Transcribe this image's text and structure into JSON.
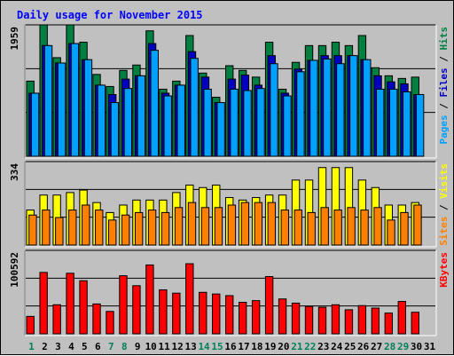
{
  "title": "Daily usage for November 2015",
  "chart_data": {
    "type": "bar",
    "title": "Daily usage for November 2015",
    "categories": [
      "1",
      "2",
      "3",
      "4",
      "5",
      "6",
      "7",
      "8",
      "9",
      "10",
      "11",
      "12",
      "13",
      "14",
      "15",
      "16",
      "17",
      "18",
      "19",
      "20",
      "21",
      "22",
      "23",
      "24",
      "25",
      "26",
      "27",
      "28",
      "29",
      "30",
      "31"
    ],
    "weekend_days": [
      "1",
      "7",
      "8",
      "14",
      "15",
      "21",
      "22",
      "28",
      "29"
    ],
    "panels": [
      {
        "id": "top",
        "ymax_label": "1959",
        "ymax": 1959,
        "legend": [
          {
            "label": "Pages",
            "color": "#00a0ff"
          },
          {
            "label": "Files",
            "color": "#0000c0"
          },
          {
            "label": "Hits",
            "color": "#008040"
          }
        ],
        "series": [
          {
            "name": "Hits",
            "color": "#008040",
            "values": [
              1120,
              1959,
              1470,
              1959,
              1700,
              1220,
              1040,
              1280,
              1360,
              1870,
              1000,
              1120,
              1800,
              1240,
              880,
              1350,
              1280,
              1180,
              1700,
              1000,
              1400,
              1650,
              1650,
              1700,
              1650,
              1800,
              1320,
              1200,
              1160,
              1180,
              0
            ]
          },
          {
            "name": "Files",
            "color": "#0000c0",
            "values": [
              940,
              1650,
              1390,
              1680,
              1440,
              1060,
              920,
              1150,
              1200,
              1680,
              940,
              1060,
              1560,
              1180,
              800,
              1150,
              1210,
              1060,
              1500,
              940,
              1300,
              1430,
              1500,
              1500,
              1500,
              1440,
              1200,
              1110,
              1080,
              920,
              0
            ]
          },
          {
            "name": "Pages",
            "color": "#00a0ff",
            "values": [
              940,
              1650,
              1390,
              1680,
              1440,
              1060,
              800,
              1010,
              1200,
              1580,
              900,
              1060,
              1460,
              1000,
              800,
              1000,
              980,
              1010,
              1380,
              900,
              1260,
              1430,
              1450,
              1380,
              1500,
              1440,
              1000,
              1000,
              960,
              920,
              0
            ]
          }
        ]
      },
      {
        "id": "middle",
        "ymax_label": "334",
        "ymax": 334,
        "legend": [
          {
            "label": "Sites",
            "color": "#ff8000"
          },
          {
            "label": "Visits",
            "color": "#ffff00"
          }
        ],
        "series": [
          {
            "name": "Visits",
            "color": "#ffff00",
            "values": [
              140,
              200,
              200,
              210,
              220,
              170,
              130,
              160,
              180,
              180,
              180,
              210,
              240,
              230,
              240,
              190,
              180,
              190,
              200,
              200,
              260,
              260,
              310,
              310,
              310,
              260,
              230,
              160,
              160,
              170,
              0
            ]
          },
          {
            "name": "Sites",
            "color": "#ff8000",
            "values": [
              120,
              140,
              110,
              140,
              160,
              140,
              100,
              120,
              130,
              140,
              130,
              150,
              170,
              150,
              150,
              160,
              170,
              170,
              170,
              140,
              140,
              130,
              150,
              140,
              150,
              140,
              150,
              100,
              130,
              160,
              0
            ]
          }
        ]
      },
      {
        "id": "bottom",
        "ymax_label": "100592",
        "ymax": 100592,
        "legend": [
          {
            "label": "KBytes",
            "color": "#ff0000"
          }
        ],
        "series": [
          {
            "name": "KBytes",
            "color": "#ff0000",
            "values": [
              21000,
              74000,
              35000,
              73000,
              64000,
              36000,
              27000,
              70000,
              58000,
              83000,
              53000,
              49000,
              84500,
              50000,
              48000,
              46000,
              38000,
              40000,
              69000,
              42000,
              37000,
              33000,
              32000,
              35000,
              29000,
              34000,
              31000,
              25000,
              39000,
              26000,
              0
            ]
          }
        ]
      }
    ]
  }
}
